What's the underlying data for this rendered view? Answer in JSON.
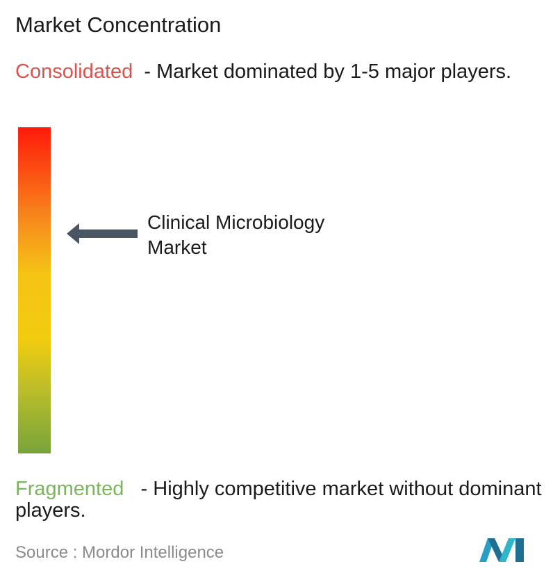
{
  "header": {
    "title": "Market Concentration"
  },
  "consolidated": {
    "label": "Consolidated",
    "description": "- Market dominated by 1-5 major players."
  },
  "marker": {
    "label": "Clinical Microbiology Market"
  },
  "fragmented": {
    "label": "Fragmented",
    "description": "- Highly competitive market without dominant players."
  },
  "footer": {
    "source": "Source :  Mordor Intelligence"
  }
}
